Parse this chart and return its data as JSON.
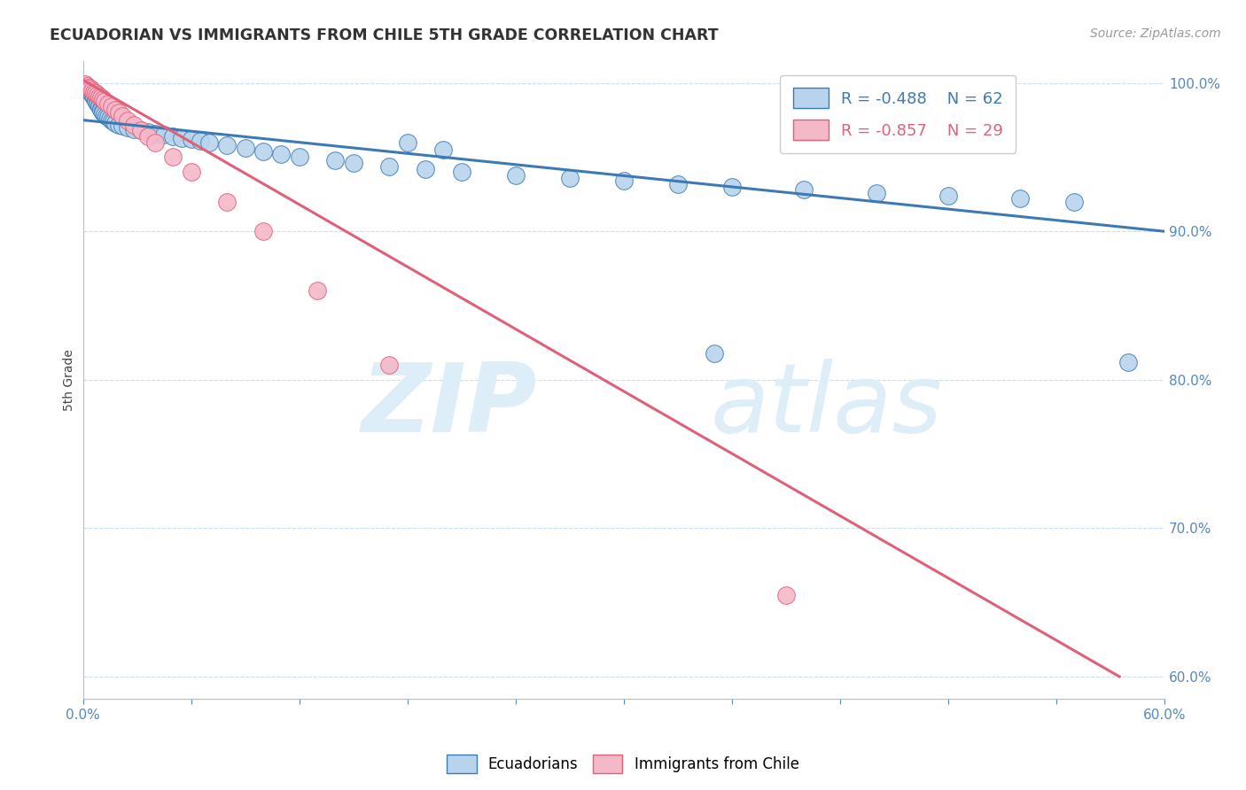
{
  "title": "ECUADORIAN VS IMMIGRANTS FROM CHILE 5TH GRADE CORRELATION CHART",
  "source": "Source: ZipAtlas.com",
  "ylabel": "5th Grade",
  "xmin": 0.0,
  "xmax": 0.6,
  "ymin": 0.585,
  "ymax": 1.015,
  "blue_R": -0.488,
  "blue_N": 62,
  "pink_R": -0.857,
  "pink_N": 29,
  "blue_color": "#b8d4ec",
  "pink_color": "#f5b8c8",
  "blue_line_color": "#3d7ab5",
  "pink_line_color": "#e0607a",
  "legend_label_blue": "Ecuadorians",
  "legend_label_pink": "Immigrants from Chile",
  "blue_scatter_x": [
    0.001,
    0.002,
    0.003,
    0.004,
    0.005,
    0.005,
    0.006,
    0.006,
    0.007,
    0.007,
    0.008,
    0.008,
    0.009,
    0.009,
    0.01,
    0.01,
    0.011,
    0.011,
    0.012,
    0.013,
    0.014,
    0.015,
    0.016,
    0.017,
    0.018,
    0.02,
    0.022,
    0.025,
    0.028,
    0.032,
    0.036,
    0.04,
    0.045,
    0.05,
    0.055,
    0.06,
    0.065,
    0.07,
    0.08,
    0.09,
    0.1,
    0.11,
    0.12,
    0.14,
    0.15,
    0.17,
    0.19,
    0.21,
    0.24,
    0.27,
    0.3,
    0.33,
    0.36,
    0.4,
    0.44,
    0.48,
    0.52,
    0.55,
    0.18,
    0.2,
    0.35,
    0.58
  ],
  "blue_scatter_y": [
    0.997,
    0.996,
    0.995,
    0.994,
    0.993,
    0.992,
    0.991,
    0.99,
    0.989,
    0.988,
    0.987,
    0.986,
    0.985,
    0.984,
    0.983,
    0.982,
    0.981,
    0.98,
    0.979,
    0.978,
    0.977,
    0.976,
    0.975,
    0.974,
    0.973,
    0.972,
    0.971,
    0.97,
    0.969,
    0.968,
    0.967,
    0.966,
    0.965,
    0.964,
    0.963,
    0.962,
    0.961,
    0.96,
    0.958,
    0.956,
    0.954,
    0.952,
    0.95,
    0.948,
    0.946,
    0.944,
    0.942,
    0.94,
    0.938,
    0.936,
    0.934,
    0.932,
    0.93,
    0.928,
    0.926,
    0.924,
    0.922,
    0.92,
    0.96,
    0.955,
    0.818,
    0.812
  ],
  "pink_scatter_x": [
    0.001,
    0.002,
    0.003,
    0.004,
    0.005,
    0.006,
    0.007,
    0.008,
    0.009,
    0.01,
    0.011,
    0.012,
    0.014,
    0.016,
    0.018,
    0.02,
    0.022,
    0.025,
    0.028,
    0.032,
    0.036,
    0.04,
    0.05,
    0.06,
    0.08,
    0.1,
    0.13,
    0.17,
    0.39
  ],
  "pink_scatter_y": [
    0.999,
    0.998,
    0.997,
    0.996,
    0.995,
    0.994,
    0.993,
    0.992,
    0.991,
    0.99,
    0.989,
    0.988,
    0.986,
    0.984,
    0.982,
    0.98,
    0.978,
    0.975,
    0.972,
    0.968,
    0.964,
    0.96,
    0.95,
    0.94,
    0.92,
    0.9,
    0.86,
    0.81,
    0.655
  ],
  "blue_line_x": [
    0.0,
    0.6
  ],
  "blue_line_y": [
    0.975,
    0.9
  ],
  "pink_line_x": [
    0.0,
    0.575
  ],
  "pink_line_y": [
    1.002,
    0.6
  ],
  "yticks": [
    0.6,
    0.7,
    0.8,
    0.9,
    1.0
  ],
  "ytick_labels": [
    "60.0%",
    "70.0%",
    "80.0%",
    "90.0%",
    "100.0%"
  ],
  "xticks": [
    0.0,
    0.06,
    0.12,
    0.18,
    0.24,
    0.3,
    0.36,
    0.42,
    0.48,
    0.54,
    0.6
  ],
  "xtick_labels": [
    "0.0%",
    "",
    "",
    "",
    "",
    "",
    "",
    "",
    "",
    "",
    "60.0%"
  ]
}
